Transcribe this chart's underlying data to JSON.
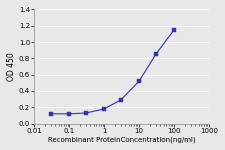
{
  "x": [
    0.03,
    0.1,
    0.3,
    1,
    3,
    10,
    30,
    100
  ],
  "y": [
    0.12,
    0.12,
    0.13,
    0.18,
    0.29,
    0.52,
    0.85,
    1.15
  ],
  "line_color": "#3333AA",
  "marker_color": "#3333AA",
  "marker": "s",
  "marker_size": 2.5,
  "line_width": 0.8,
  "xlabel": "Recombinant ProteinConcentration(ng/ml)",
  "ylabel": "OD 450",
  "ylim": [
    0,
    1.4
  ],
  "yticks": [
    0,
    0.2,
    0.4,
    0.6,
    0.8,
    1.0,
    1.2,
    1.4
  ],
  "xticks": [
    0.01,
    0.1,
    1,
    10,
    100,
    1000
  ],
  "xtick_labels": [
    "0.01",
    "0.1",
    "1",
    "10",
    "100",
    "1000"
  ],
  "xlim_log": [
    0.01,
    1000
  ],
  "xlabel_fontsize": 5.0,
  "ylabel_fontsize": 5.5,
  "tick_fontsize": 5.0,
  "plot_bg_color": "#e8e8e8",
  "fig_bg_color": "#e8e8e8",
  "grid_color": "#ffffff",
  "grid_linewidth": 0.6
}
